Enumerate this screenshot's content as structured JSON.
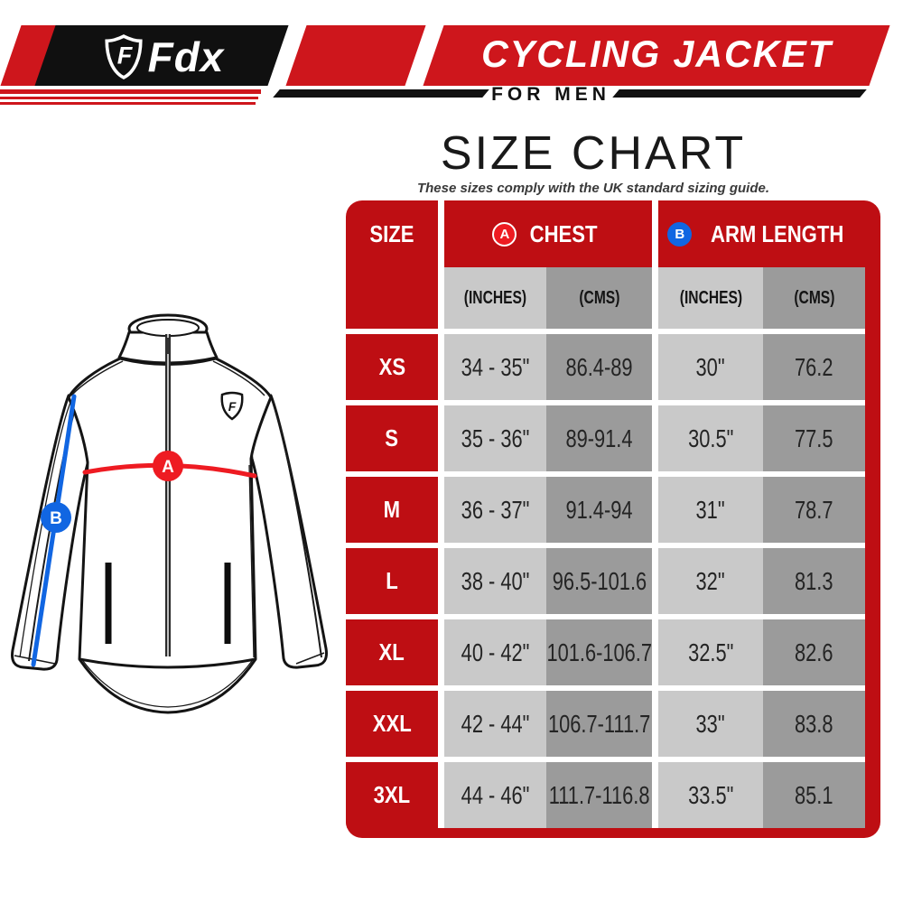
{
  "brand": {
    "name": "Fdx",
    "logo_letter": "F"
  },
  "banner": {
    "title": "CYCLING JACKET",
    "subtitle": "FOR MEN"
  },
  "heading": {
    "title": "SIZE CHART",
    "note": "These sizes comply with the UK standard sizing guide."
  },
  "markers": {
    "chest": "A",
    "arm": "B"
  },
  "table": {
    "size_header": "SIZE",
    "chest_header": "CHEST",
    "arm_header": "ARM LENGTH",
    "inches_label": "(INCHES)",
    "cms_label": "(CMS)",
    "rows": [
      {
        "size": "XS",
        "chest_in": "34 - 35\"",
        "chest_cm": "86.4-89",
        "arm_in": "30\"",
        "arm_cm": "76.2"
      },
      {
        "size": "S",
        "chest_in": "35 - 36\"",
        "chest_cm": "89-91.4",
        "arm_in": "30.5\"",
        "arm_cm": "77.5"
      },
      {
        "size": "M",
        "chest_in": "36 - 37\"",
        "chest_cm": "91.4-94",
        "arm_in": "31\"",
        "arm_cm": "78.7"
      },
      {
        "size": "L",
        "chest_in": "38 - 40\"",
        "chest_cm": "96.5-101.6",
        "arm_in": "32\"",
        "arm_cm": "81.3"
      },
      {
        "size": "XL",
        "chest_in": "40 - 42\"",
        "chest_cm": "101.6-106.7",
        "arm_in": "32.5\"",
        "arm_cm": "82.6"
      },
      {
        "size": "XXL",
        "chest_in": "42 - 44\"",
        "chest_cm": "106.7-111.7",
        "arm_in": "33\"",
        "arm_cm": "83.8"
      },
      {
        "size": "3XL",
        "chest_in": "44 - 46\"",
        "chest_cm": "111.7-116.8",
        "arm_in": "33.5\"",
        "arm_cm": "85.1"
      }
    ]
  },
  "chart_data": {
    "type": "table",
    "title": "SIZE CHART",
    "note": "These sizes comply with the UK standard sizing guide.",
    "columns": [
      "SIZE",
      "CHEST (INCHES)",
      "CHEST (CMS)",
      "ARM LENGTH (INCHES)",
      "ARM LENGTH (CMS)"
    ],
    "rows": [
      [
        "XS",
        "34 - 35\"",
        "86.4-89",
        "30\"",
        "76.2"
      ],
      [
        "S",
        "35 - 36\"",
        "89-91.4",
        "30.5\"",
        "77.5"
      ],
      [
        "M",
        "36 - 37\"",
        "91.4-94",
        "31\"",
        "78.7"
      ],
      [
        "L",
        "38 - 40\"",
        "96.5-101.6",
        "32\"",
        "81.3"
      ],
      [
        "XL",
        "40 - 42\"",
        "101.6-106.7",
        "32.5\"",
        "82.6"
      ],
      [
        "XXL",
        "42 - 44\"",
        "106.7-111.7",
        "33\"",
        "83.8"
      ],
      [
        "3XL",
        "44 - 46\"",
        "111.7-116.8",
        "33.5\"",
        "85.1"
      ]
    ]
  },
  "colors": {
    "banner_red": "#CE161C",
    "table_red": "#BE0E13",
    "marker_red": "#EE1B22",
    "marker_blue": "#1166E2",
    "cell_light": "#C9C9C9",
    "cell_dark": "#9B9B9B",
    "banner_black": "#101010"
  }
}
